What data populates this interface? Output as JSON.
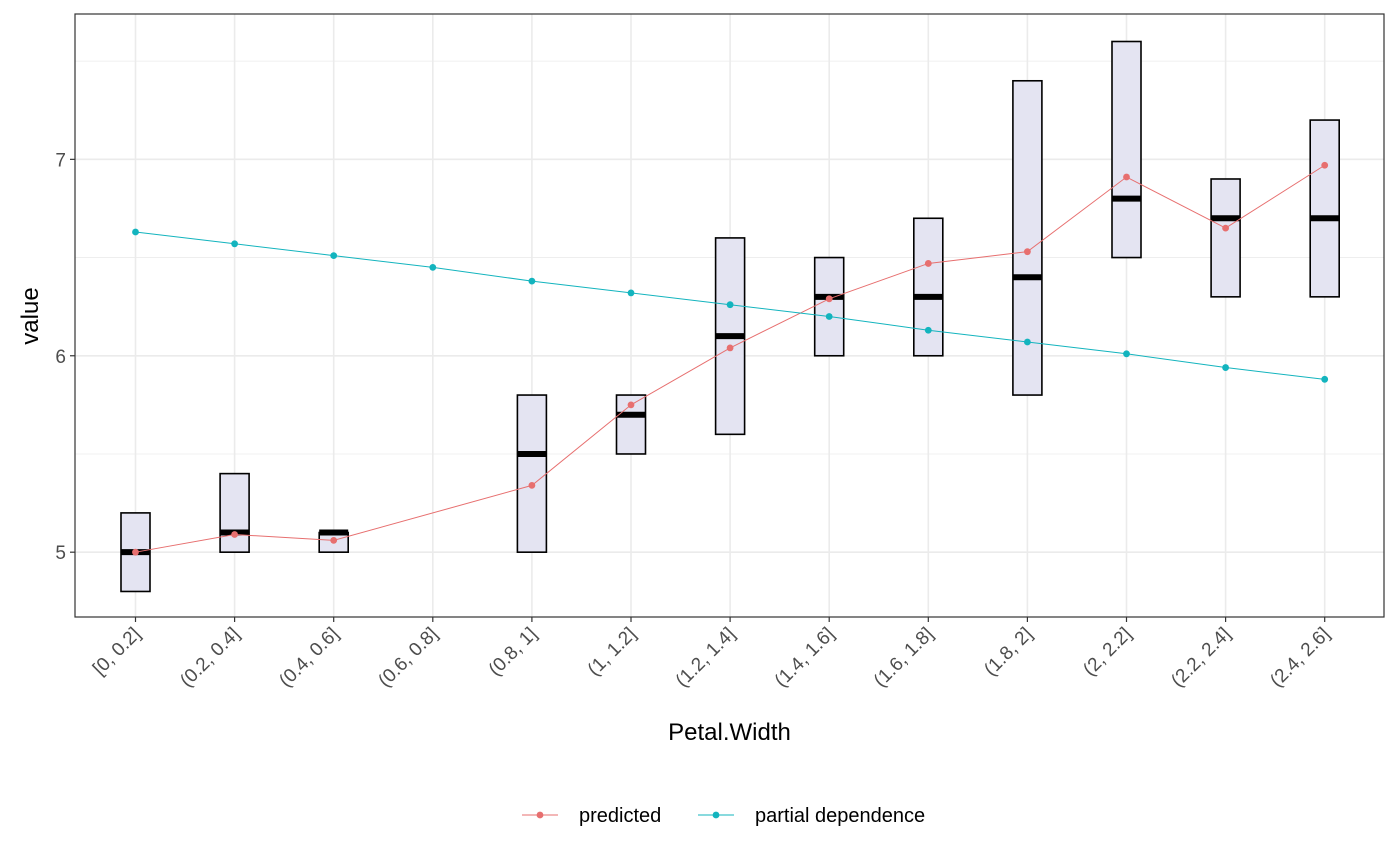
{
  "chart_data": {
    "type": "boxplot-with-lines",
    "xlabel": "Petal.Width",
    "ylabel": "value",
    "categories": [
      "[0, 0.2]",
      "(0.2, 0.4]",
      "(0.4, 0.6]",
      "(0.6, 0.8]",
      "(0.8, 1]",
      "(1, 1.2]",
      "(1.2, 1.4]",
      "(1.4, 1.6]",
      "(1.6, 1.8]",
      "(1.8, 2]",
      "(2, 2.2]",
      "(2.2, 2.4]",
      "(2.4, 2.6]"
    ],
    "y_ticks": [
      "5",
      "6",
      "7"
    ],
    "ylim": [
      4.67,
      7.74
    ],
    "grid": true,
    "legend_position": "bottom",
    "boxes": [
      {
        "category": "[0, 0.2]",
        "low": 4.8,
        "high": 5.2,
        "median": 5.0
      },
      {
        "category": "(0.2, 0.4]",
        "low": 5.0,
        "high": 5.4,
        "median": 5.1
      },
      {
        "category": "(0.4, 0.6]",
        "low": 5.0,
        "high": 5.1,
        "median": 5.1
      },
      {
        "category": "(0.8, 1]",
        "low": 5.0,
        "high": 5.8,
        "median": 5.5
      },
      {
        "category": "(1, 1.2]",
        "low": 5.5,
        "high": 5.8,
        "median": 5.7
      },
      {
        "category": "(1.2, 1.4]",
        "low": 5.6,
        "high": 6.6,
        "median": 6.1
      },
      {
        "category": "(1.4, 1.6]",
        "low": 6.0,
        "high": 6.5,
        "median": 6.3
      },
      {
        "category": "(1.6, 1.8]",
        "low": 6.0,
        "high": 6.7,
        "median": 6.3
      },
      {
        "category": "(1.8, 2]",
        "low": 5.8,
        "high": 7.4,
        "median": 6.4
      },
      {
        "category": "(2, 2.2]",
        "low": 6.5,
        "high": 7.6,
        "median": 6.8
      },
      {
        "category": "(2.2, 2.4]",
        "low": 6.3,
        "high": 6.9,
        "median": 6.7
      },
      {
        "category": "(2.4, 2.6]",
        "low": 6.3,
        "high": 7.2,
        "median": 6.7
      }
    ],
    "series": [
      {
        "name": "predicted",
        "color": "#e76f6f",
        "points": [
          {
            "category": "[0, 0.2]",
            "value": 5.0
          },
          {
            "category": "(0.2, 0.4]",
            "value": 5.09
          },
          {
            "category": "(0.4, 0.6]",
            "value": 5.06
          },
          {
            "category": "(0.8, 1]",
            "value": 5.34
          },
          {
            "category": "(1, 1.2]",
            "value": 5.75
          },
          {
            "category": "(1.2, 1.4]",
            "value": 6.04
          },
          {
            "category": "(1.4, 1.6]",
            "value": 6.29
          },
          {
            "category": "(1.6, 1.8]",
            "value": 6.47
          },
          {
            "category": "(1.8, 2]",
            "value": 6.53
          },
          {
            "category": "(2, 2.2]",
            "value": 6.91
          },
          {
            "category": "(2.2, 2.4]",
            "value": 6.65
          },
          {
            "category": "(2.4, 2.6]",
            "value": 6.97
          }
        ]
      },
      {
        "name": "partial dependence",
        "color": "#13b4be",
        "points": [
          {
            "category": "[0, 0.2]",
            "value": 6.63
          },
          {
            "category": "(0.2, 0.4]",
            "value": 6.57
          },
          {
            "category": "(0.4, 0.6]",
            "value": 6.51
          },
          {
            "category": "(0.6, 0.8]",
            "value": 6.45
          },
          {
            "category": "(0.8, 1]",
            "value": 6.38
          },
          {
            "category": "(1, 1.2]",
            "value": 6.32
          },
          {
            "category": "(1.2, 1.4]",
            "value": 6.26
          },
          {
            "category": "(1.4, 1.6]",
            "value": 6.2
          },
          {
            "category": "(1.6, 1.8]",
            "value": 6.13
          },
          {
            "category": "(1.8, 2]",
            "value": 6.07
          },
          {
            "category": "(2, 2.2]",
            "value": 6.01
          },
          {
            "category": "(2.2, 2.4]",
            "value": 5.94
          },
          {
            "category": "(2.4, 2.6]",
            "value": 5.88
          }
        ]
      }
    ],
    "colors": {
      "box_fill": "#e4e4f2",
      "box_stroke": "#000000",
      "median": "#000000",
      "grid": "#ebebeb",
      "panel_border": "#333333"
    }
  }
}
